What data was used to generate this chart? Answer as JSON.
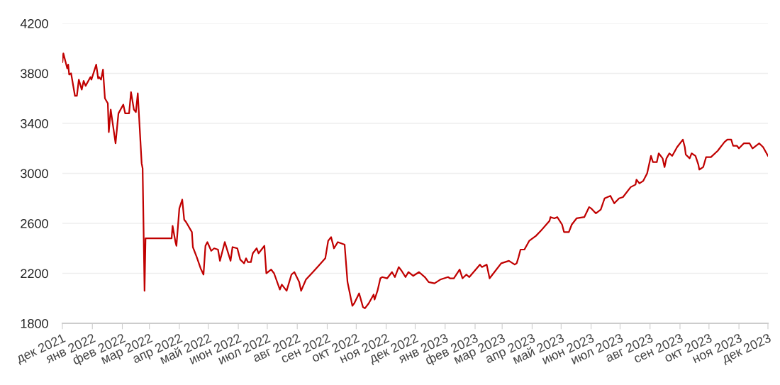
{
  "chart_data": {
    "type": "line",
    "x": [
      "2021-12-01",
      "2021-12-02",
      "2021-12-06",
      "2021-12-07",
      "2021-12-08",
      "2021-12-10",
      "2021-12-14",
      "2021-12-16",
      "2021-12-18",
      "2021-12-21",
      "2021-12-23",
      "2021-12-25",
      "2021-12-30",
      "2021-12-31",
      "2022-01-05",
      "2022-01-07",
      "2022-01-08",
      "2022-01-10",
      "2022-01-12",
      "2022-01-14",
      "2022-01-17",
      "2022-01-18",
      "2022-01-20",
      "2022-01-25",
      "2022-01-28",
      "2022-02-02",
      "2022-02-04",
      "2022-02-08",
      "2022-02-10",
      "2022-02-13",
      "2022-02-15",
      "2022-02-17",
      "2022-02-21",
      "2022-02-22",
      "2022-02-24",
      "2022-02-25",
      "2022-03-24",
      "2022-03-25",
      "2022-03-28",
      "2022-03-29",
      "2022-04-01",
      "2022-04-04",
      "2022-04-06",
      "2022-04-08",
      "2022-04-14",
      "2022-04-15",
      "2022-04-19",
      "2022-04-23",
      "2022-04-26",
      "2022-04-28",
      "2022-04-30",
      "2022-05-04",
      "2022-05-07",
      "2022-05-11",
      "2022-05-13",
      "2022-05-18",
      "2022-05-24",
      "2022-05-26",
      "2022-05-31",
      "2022-06-03",
      "2022-06-07",
      "2022-06-09",
      "2022-06-11",
      "2022-06-14",
      "2022-06-16",
      "2022-06-20",
      "2022-06-22",
      "2022-06-28",
      "2022-06-30",
      "2022-07-05",
      "2022-07-08",
      "2022-07-14",
      "2022-07-16",
      "2022-07-21",
      "2022-07-26",
      "2022-07-29",
      "2022-08-03",
      "2022-08-05",
      "2022-08-10",
      "2022-08-16",
      "2022-08-23",
      "2022-08-30",
      "2022-09-02",
      "2022-09-05",
      "2022-09-08",
      "2022-09-12",
      "2022-09-19",
      "2022-09-22",
      "2022-09-27",
      "2022-09-29",
      "2022-10-04",
      "2022-10-08",
      "2022-10-10",
      "2022-10-14",
      "2022-10-19",
      "2022-10-20",
      "2022-10-23",
      "2022-10-26",
      "2022-10-28",
      "2022-11-02",
      "2022-11-07",
      "2022-11-10",
      "2022-11-14",
      "2022-11-17",
      "2022-11-21",
      "2022-11-24",
      "2022-11-29",
      "2022-12-05",
      "2022-12-11",
      "2022-12-15",
      "2022-12-21",
      "2022-12-27",
      "2023-01-04",
      "2023-01-06",
      "2023-01-10",
      "2023-01-16",
      "2023-01-19",
      "2023-01-23",
      "2023-01-26",
      "2023-02-06",
      "2023-02-08",
      "2023-02-13",
      "2023-02-16",
      "2023-02-21",
      "2023-02-28",
      "2023-03-08",
      "2023-03-14",
      "2023-03-16",
      "2023-03-18",
      "2023-03-20",
      "2023-03-24",
      "2023-03-29",
      "2023-04-05",
      "2023-04-10",
      "2023-04-19",
      "2023-04-20",
      "2023-04-24",
      "2023-04-27",
      "2023-05-02",
      "2023-05-04",
      "2023-05-09",
      "2023-05-12",
      "2023-05-17",
      "2023-05-25",
      "2023-05-30",
      "2023-06-01",
      "2023-06-06",
      "2023-06-11",
      "2023-06-15",
      "2023-06-21",
      "2023-06-25",
      "2023-06-30",
      "2023-07-04",
      "2023-07-12",
      "2023-07-17",
      "2023-07-18",
      "2023-07-21",
      "2023-07-25",
      "2023-07-29",
      "2023-08-02",
      "2023-08-04",
      "2023-08-08",
      "2023-08-10",
      "2023-08-14",
      "2023-08-16",
      "2023-08-18",
      "2023-08-21",
      "2023-08-24",
      "2023-08-29",
      "2023-09-04",
      "2023-09-06",
      "2023-09-07",
      "2023-09-11",
      "2023-09-13",
      "2023-09-17",
      "2023-09-20",
      "2023-09-21",
      "2023-09-25",
      "2023-09-28",
      "2023-10-03",
      "2023-10-10",
      "2023-10-17",
      "2023-10-20",
      "2023-10-24",
      "2023-10-26",
      "2023-10-30",
      "2023-11-01",
      "2023-11-06",
      "2023-11-12",
      "2023-11-15",
      "2023-11-17",
      "2023-11-22",
      "2023-11-26",
      "2023-12-01"
    ],
    "series": [
      {
        "color": "#c00000",
        "values": [
          3890,
          3960,
          3840,
          3870,
          3790,
          3800,
          3620,
          3620,
          3750,
          3670,
          3740,
          3700,
          3770,
          3750,
          3870,
          3760,
          3770,
          3750,
          3830,
          3600,
          3560,
          3330,
          3510,
          3240,
          3480,
          3550,
          3480,
          3480,
          3650,
          3510,
          3490,
          3640,
          3080,
          3040,
          2060,
          2480,
          2480,
          2580,
          2450,
          2420,
          2720,
          2790,
          2630,
          2610,
          2530,
          2410,
          2330,
          2240,
          2190,
          2420,
          2450,
          2380,
          2400,
          2390,
          2300,
          2450,
          2300,
          2410,
          2400,
          2310,
          2280,
          2320,
          2290,
          2290,
          2360,
          2400,
          2360,
          2420,
          2200,
          2230,
          2200,
          2070,
          2110,
          2060,
          2190,
          2210,
          2130,
          2060,
          2150,
          2200,
          2260,
          2320,
          2460,
          2490,
          2400,
          2450,
          2430,
          2130,
          1940,
          1960,
          2040,
          1930,
          1920,
          1960,
          2030,
          1990,
          2060,
          2160,
          2170,
          2160,
          2210,
          2170,
          2250,
          2220,
          2170,
          2210,
          2180,
          2210,
          2170,
          2130,
          2120,
          2150,
          2170,
          2160,
          2160,
          2230,
          2160,
          2190,
          2170,
          2270,
          2250,
          2270,
          2160,
          2210,
          2280,
          2300,
          2270,
          2280,
          2330,
          2390,
          2390,
          2460,
          2500,
          2540,
          2620,
          2650,
          2640,
          2650,
          2590,
          2530,
          2530,
          2590,
          2640,
          2650,
          2730,
          2720,
          2680,
          2710,
          2800,
          2820,
          2760,
          2800,
          2810,
          2890,
          2910,
          2950,
          2920,
          2940,
          3000,
          3140,
          3090,
          3090,
          3160,
          3120,
          3050,
          3120,
          3160,
          3140,
          3210,
          3270,
          3210,
          3150,
          3120,
          3160,
          3140,
          3070,
          3030,
          3050,
          3130,
          3130,
          3180,
          3250,
          3270,
          3270,
          3220,
          3220,
          3200,
          3240,
          3240,
          3200,
          3210,
          3240,
          3210,
          3140
        ]
      }
    ],
    "xlim": [
      "2021-12-01",
      "2023-12-01"
    ],
    "xticks": [
      {
        "value": "2021-12-01",
        "label": "дек 2021"
      },
      {
        "value": "2022-01-01",
        "label": "янв 2022"
      },
      {
        "value": "2022-02-01",
        "label": "фев 2022"
      },
      {
        "value": "2022-03-01",
        "label": "мар 2022"
      },
      {
        "value": "2022-04-01",
        "label": "апр 2022"
      },
      {
        "value": "2022-05-01",
        "label": "май 2022"
      },
      {
        "value": "2022-06-01",
        "label": "июн 2022"
      },
      {
        "value": "2022-07-01",
        "label": "июл 2022"
      },
      {
        "value": "2022-08-01",
        "label": "авг 2022"
      },
      {
        "value": "2022-09-01",
        "label": "сен 2022"
      },
      {
        "value": "2022-10-01",
        "label": "окт 2022"
      },
      {
        "value": "2022-11-01",
        "label": "ноя 2022"
      },
      {
        "value": "2022-12-01",
        "label": "дек 2022"
      },
      {
        "value": "2023-01-01",
        "label": "янв 2023"
      },
      {
        "value": "2023-02-01",
        "label": "фев 2023"
      },
      {
        "value": "2023-03-01",
        "label": "мар 2023"
      },
      {
        "value": "2023-04-01",
        "label": "апр 2023"
      },
      {
        "value": "2023-05-01",
        "label": "май 2023"
      },
      {
        "value": "2023-06-01",
        "label": "июн 2023"
      },
      {
        "value": "2023-07-01",
        "label": "июл 2023"
      },
      {
        "value": "2023-08-01",
        "label": "авг 2023"
      },
      {
        "value": "2023-09-01",
        "label": "сен 2023"
      },
      {
        "value": "2023-10-01",
        "label": "окт 2023"
      },
      {
        "value": "2023-11-01",
        "label": "ноя 2023"
      },
      {
        "value": "2023-12-01",
        "label": "дек 2023"
      }
    ],
    "ylim": [
      1800,
      4200
    ],
    "yticks": [
      1800,
      2200,
      2600,
      3000,
      3400,
      3800,
      4200
    ],
    "grid": "y",
    "marker": "none",
    "line_style": "solid"
  }
}
